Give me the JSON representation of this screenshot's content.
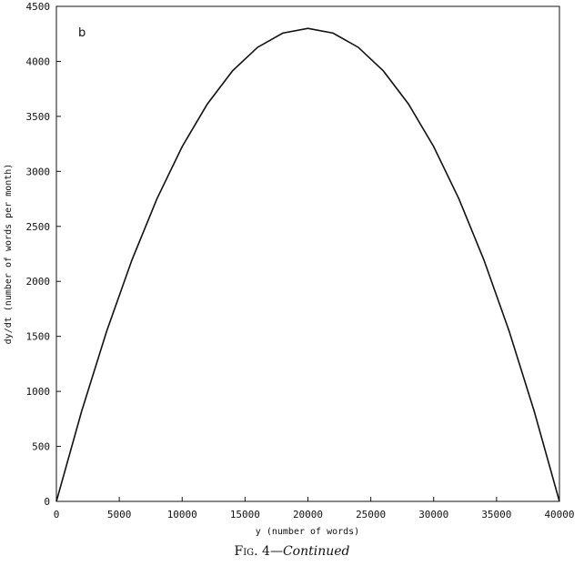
{
  "chart_data": {
    "type": "line",
    "panel_label": "b",
    "xlabel": "y (number of words)",
    "ylabel": "dy/dt (number of words per month)",
    "xlim": [
      0,
      40000
    ],
    "ylim": [
      0,
      4500
    ],
    "x_ticks": [
      0,
      5000,
      10000,
      15000,
      20000,
      25000,
      30000,
      35000,
      40000
    ],
    "y_ticks": [
      0,
      500,
      1000,
      1500,
      2000,
      2500,
      3000,
      3500,
      4000,
      4500
    ],
    "grid": false,
    "series": [
      {
        "x": [
          0,
          2000,
          4000,
          6000,
          8000,
          10000,
          12000,
          14000,
          16000,
          18000,
          20000,
          22000,
          24000,
          26000,
          28000,
          30000,
          32000,
          34000,
          36000,
          38000,
          40000
        ],
        "y": [
          0,
          817,
          1548,
          2193,
          2752,
          3225,
          3612,
          3913,
          4128,
          4257,
          4300,
          4257,
          4128,
          3913,
          3612,
          3225,
          2752,
          2193,
          1548,
          817,
          0
        ]
      }
    ],
    "line_color": "#111111"
  },
  "caption": {
    "figure": "Fig. 4",
    "separator": "—",
    "continued": "Continued"
  }
}
